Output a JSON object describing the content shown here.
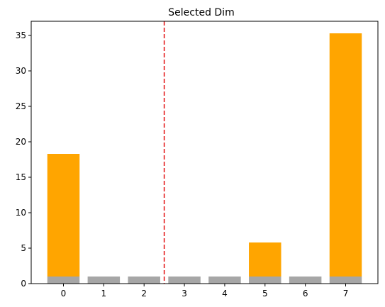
{
  "chart_data": {
    "type": "bar",
    "title": "Selected Dim",
    "xlabel": "",
    "ylabel": "",
    "categories": [
      "0",
      "1",
      "2",
      "3",
      "4",
      "5",
      "6",
      "7"
    ],
    "x": [
      0,
      1,
      2,
      3,
      4,
      5,
      6,
      7
    ],
    "stacked": true,
    "series": [
      {
        "color": "#a6a6a6",
        "values": [
          1,
          1,
          1,
          1,
          1,
          1,
          1,
          1
        ]
      },
      {
        "color": "#ffa500",
        "values": [
          17.3,
          0,
          0,
          0,
          0,
          4.8,
          0,
          34.3
        ]
      }
    ],
    "ylim": [
      0,
      37
    ],
    "yticks": [
      0,
      5,
      10,
      15,
      20,
      25,
      30,
      35
    ],
    "xlim": [
      -0.8,
      7.8
    ],
    "vline": {
      "x": 2.5,
      "color": "#e41a1c",
      "style": "dashed"
    },
    "grid": false,
    "legend": "none"
  }
}
